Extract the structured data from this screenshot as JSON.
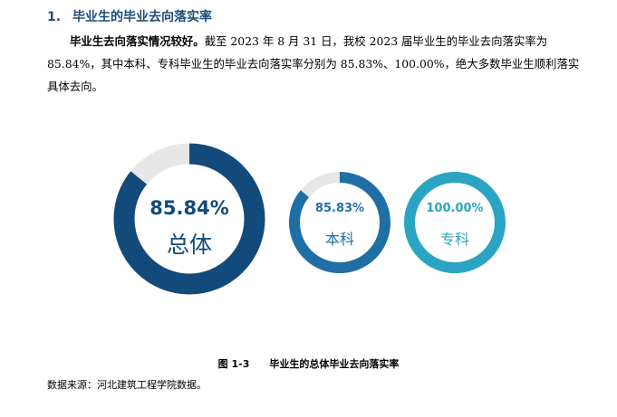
{
  "heading": {
    "number": "1.",
    "title": "毕业生的毕业去向落实率"
  },
  "paragraph": {
    "lead": "毕业生去向落实情况较好。",
    "body": "截至 2023 年 8 月 31 日，我校 2023 届毕业生的毕业去向落实率为 85.84%，其中本科、专科毕业生的毕业去向落实率分别为 85.83%、100.00%，绝大多数毕业生顺利落实具体去向。"
  },
  "chart_data": {
    "type": "pie",
    "variant": "donut",
    "items": [
      {
        "label": "总体",
        "value_text": "85.84%",
        "value": 85.84,
        "color": "#134a7c",
        "track_color": "#e7e7e7"
      },
      {
        "label": "本科",
        "value_text": "85.83%",
        "value": 85.83,
        "color": "#1f6fa5",
        "track_color": "#e7e7e7"
      },
      {
        "label": "专科",
        "value_text": "100.00%",
        "value": 100.0,
        "color": "#2aa4c2",
        "track_color": "#e7e7e7"
      }
    ]
  },
  "caption": {
    "number": "图 1-3",
    "title": "毕业生的总体毕业去向落实率"
  },
  "source": "数据来源：河北建筑工程学院数据。"
}
